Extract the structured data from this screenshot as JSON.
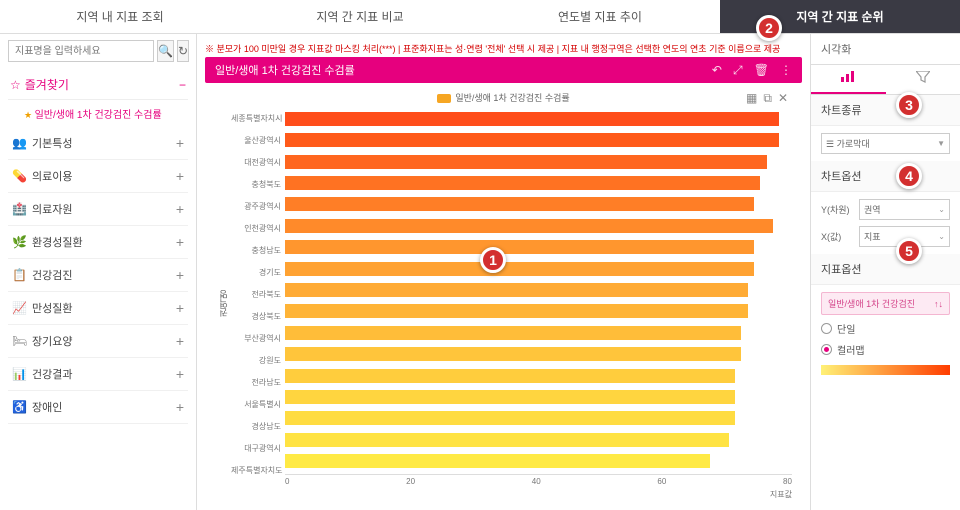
{
  "tabs": [
    "지역 내 지표 조회",
    "지역 간 지표 비교",
    "연도별 지표 추이",
    "지역 간 지표 순위"
  ],
  "active_tab": 3,
  "search_placeholder": "지표명을 입력하세요",
  "favorites": {
    "title": "즐겨찾기",
    "items": [
      "일반/생애 1차 건강검진 수검률"
    ]
  },
  "categories": [
    {
      "icon": "👥",
      "label": "기본특성"
    },
    {
      "icon": "💊",
      "label": "의료이용"
    },
    {
      "icon": "🏥",
      "label": "의료자원"
    },
    {
      "icon": "🌿",
      "label": "환경성질환"
    },
    {
      "icon": "📋",
      "label": "건강검진"
    },
    {
      "icon": "📈",
      "label": "만성질환"
    },
    {
      "icon": "🛏",
      "label": "장기요양"
    },
    {
      "icon": "📊",
      "label": "건강결과"
    },
    {
      "icon": "♿",
      "label": "장애인"
    }
  ],
  "warning": "※ 분모가 100 미만일 경우 지표값 마스킹 처리(***) | 표준화지표는 성·연령 '전체' 선택 시 제공 | 지표 내 행정구역은 선택한 연도의 연초 기준 이름으로 제공",
  "chart": {
    "title": "일반/생애 1차 건강검진 수검률",
    "legend": "일반/생애 1차 건강검진 수검률",
    "y_axis_label": "권역명",
    "x_axis_label": "지표값",
    "xmax": 80,
    "xticks": [
      0,
      20,
      40,
      60,
      80
    ],
    "bars": [
      {
        "label": "세종특별자치시",
        "value": 78,
        "color": "#ff4d1a"
      },
      {
        "label": "울산광역시",
        "value": 78,
        "color": "#ff5a1a"
      },
      {
        "label": "대전광역시",
        "value": 76,
        "color": "#ff661f"
      },
      {
        "label": "충청북도",
        "value": 75,
        "color": "#ff7222"
      },
      {
        "label": "광주광역시",
        "value": 74,
        "color": "#ff7e26"
      },
      {
        "label": "인천광역시",
        "value": 77,
        "color": "#ff8a2a"
      },
      {
        "label": "충청남도",
        "value": 74,
        "color": "#ff962e"
      },
      {
        "label": "경기도",
        "value": 74,
        "color": "#ffa232"
      },
      {
        "label": "전라북도",
        "value": 73,
        "color": "#ffab35"
      },
      {
        "label": "경상북도",
        "value": 73,
        "color": "#ffb437"
      },
      {
        "label": "부산광역시",
        "value": 72,
        "color": "#ffbd39"
      },
      {
        "label": "강원도",
        "value": 72,
        "color": "#ffc53b"
      },
      {
        "label": "전라남도",
        "value": 71,
        "color": "#ffcd3d"
      },
      {
        "label": "서울특별시",
        "value": 71,
        "color": "#ffd53f"
      },
      {
        "label": "경상남도",
        "value": 71,
        "color": "#ffdc41"
      },
      {
        "label": "대구광역시",
        "value": 70,
        "color": "#ffe343"
      },
      {
        "label": "제주특별자치도",
        "value": 67,
        "color": "#ffea45"
      }
    ]
  },
  "right": {
    "title": "시각화",
    "viz_tabs": [
      "차트",
      "필터"
    ],
    "sections": {
      "chart_type": {
        "header": "차트종류",
        "value": "가로막대"
      },
      "chart_opts": {
        "header": "차트옵션",
        "y_label": "Y(차원)",
        "y_val": "권역",
        "x_label": "X(값)",
        "x_val": "지표"
      },
      "ind_opts": {
        "header": "지표옵션",
        "chip": "일반/생애 1차 건강검진",
        "radio_single": "단일",
        "radio_colormap": "컬러맵"
      }
    }
  },
  "markers": [
    "1",
    "2",
    "3",
    "4",
    "5"
  ]
}
